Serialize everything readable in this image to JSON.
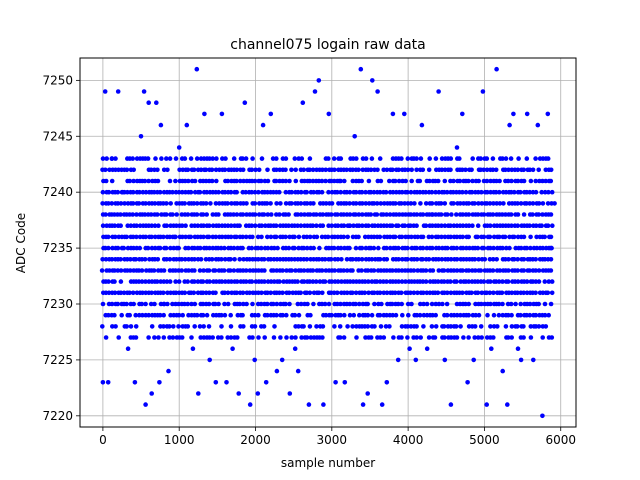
{
  "chart_data": {
    "type": "scatter",
    "title": "channel075 logain raw data",
    "xlabel": "sample number",
    "ylabel": "ADC Code",
    "xlim": [
      -300,
      6200
    ],
    "ylim": [
      7219,
      7252
    ],
    "xticks": [
      0,
      1000,
      2000,
      3000,
      4000,
      5000,
      6000
    ],
    "yticks": [
      7220,
      7225,
      7230,
      7235,
      7240,
      7245,
      7250
    ],
    "grid": true,
    "marker_color": "#0000ff",
    "series": [
      {
        "x": [
          0,
          30,
          70,
          120,
          200,
          260,
          330,
          420,
          500,
          540,
          560,
          600,
          640,
          700,
          740,
          760,
          800,
          860,
          940,
          1000,
          1040,
          1100,
          1180,
          1230,
          1250,
          1330,
          1400,
          1480,
          1560,
          1620,
          1700,
          1780,
          1860,
          1930,
          1990,
          2030,
          2100,
          2140,
          2200,
          2280,
          2350,
          2450,
          2520,
          2560,
          2620,
          2700,
          2780,
          2830,
          2890,
          2960,
          3050,
          3100,
          3170,
          3230,
          3300,
          3380,
          3410,
          3470,
          3530,
          3600,
          3660,
          3720,
          3800,
          3870,
          3950,
          4020,
          4100,
          4180,
          4250,
          4320,
          4400,
          4480,
          4560,
          4640,
          4710,
          4780,
          4860,
          4920,
          4980,
          5030,
          5090,
          5160,
          5240,
          5300,
          5330,
          5380,
          5440,
          5480,
          5560,
          5640,
          5700,
          5760,
          5830,
          5870,
          5920
        ],
        "y": [
          7223,
          7249,
          7223,
          7243,
          7249,
          7240,
          7226,
          7223,
          7245,
          7249,
          7221,
          7248,
          7222,
          7248,
          7223,
          7246,
          7230,
          7224,
          7236,
          7244,
          7240,
          7246,
          7226,
          7251,
          7222,
          7247,
          7225,
          7223,
          7247,
          7223,
          7226,
          7222,
          7248,
          7221,
          7225,
          7222,
          7246,
          7223,
          7247,
          7224,
          7225,
          7222,
          7226,
          7224,
          7248,
          7221,
          7249,
          7250,
          7221,
          7247,
          7223,
          7241,
          7223,
          7237,
          7245,
          7251,
          7221,
          7222,
          7250,
          7249,
          7221,
          7223,
          7247,
          7225,
          7247,
          7226,
          7225,
          7246,
          7226,
          7238,
          7249,
          7225,
          7221,
          7244,
          7247,
          7223,
          7225,
          7243,
          7249,
          7221,
          7226,
          7251,
          7224,
          7221,
          7246,
          7247,
          7226,
          7225,
          7247,
          7225,
          7246,
          7220,
          7247,
          7235,
          7239
        ],
        "note_bands": "dense points fill 7227–7243 across full sample range"
      }
    ]
  }
}
